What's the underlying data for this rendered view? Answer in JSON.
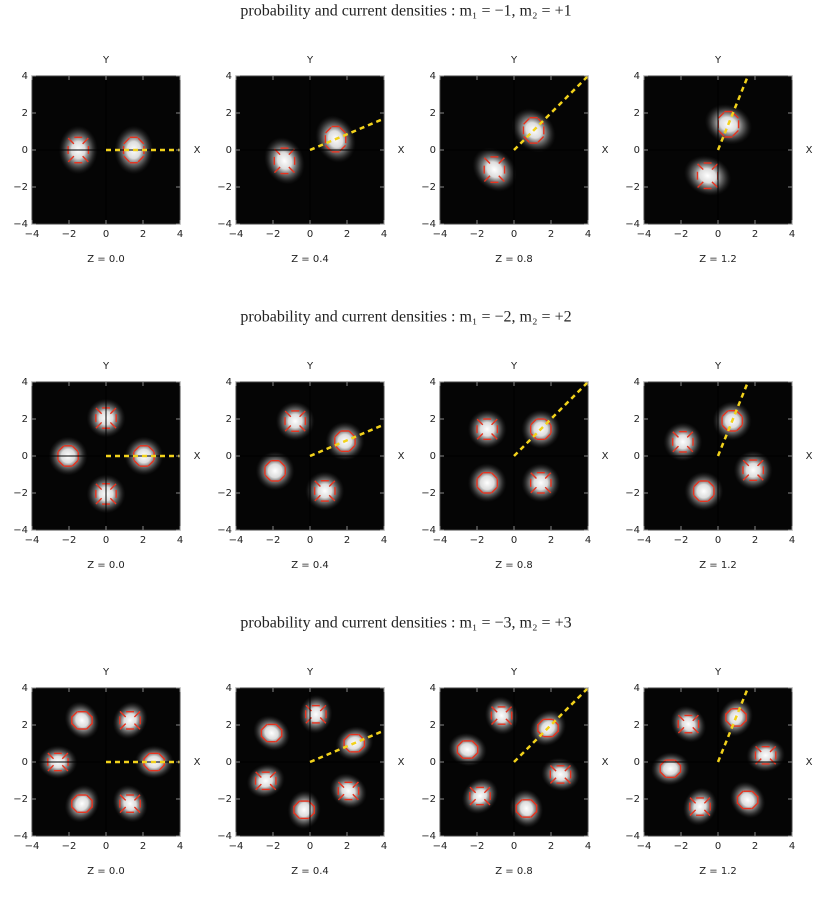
{
  "chart_data": [
    {
      "type": "density",
      "title": "probability and current densities : m₁ = −1, m₂ = +1",
      "lobes": 2,
      "xlabel": "X",
      "ylabel": "Y",
      "xlim": [
        -4,
        4
      ],
      "ylim": [
        -4,
        4
      ],
      "xticks": [
        {
          "value": -4,
          "label": "−4"
        },
        {
          "value": -2,
          "label": "−2"
        },
        0,
        2,
        4
      ],
      "yticks": [
        {
          "value": -4,
          "label": "−4"
        },
        {
          "value": -2,
          "label": "−2"
        },
        0,
        2,
        4
      ],
      "panels": [
        {
          "caption": "Z = 0.0",
          "phase_deg": 0
        },
        {
          "caption": "Z = 0.4",
          "phase_deg": 23
        },
        {
          "caption": "Z = 0.8",
          "phase_deg": 45
        },
        {
          "caption": "Z = 1.2",
          "phase_deg": 68
        }
      ]
    },
    {
      "type": "density",
      "title": "probability and current densities : m₁ = −2, m₂ = +2",
      "lobes": 4,
      "xlabel": "X",
      "ylabel": "Y",
      "xlim": [
        -4,
        4
      ],
      "ylim": [
        -4,
        4
      ],
      "xticks": [
        {
          "value": -4,
          "label": "−4"
        },
        {
          "value": -2,
          "label": "−2"
        },
        0,
        2,
        4
      ],
      "yticks": [
        {
          "value": -4,
          "label": "−4"
        },
        {
          "value": -2,
          "label": "−2"
        },
        0,
        2,
        4
      ],
      "panels": [
        {
          "caption": "Z = 0.0",
          "phase_deg": 0
        },
        {
          "caption": "Z = 0.4",
          "phase_deg": 23
        },
        {
          "caption": "Z = 0.8",
          "phase_deg": 45
        },
        {
          "caption": "Z = 1.2",
          "phase_deg": 68
        }
      ]
    },
    {
      "type": "density",
      "title": "probability and current densities : m₁ = −3, m₂ = +3",
      "lobes": 6,
      "xlabel": "X",
      "ylabel": "Y",
      "xlim": [
        -4,
        4
      ],
      "ylim": [
        -4,
        4
      ],
      "xticks": [
        {
          "value": -4,
          "label": "−4"
        },
        {
          "value": -2,
          "label": "−2"
        },
        0,
        2,
        4
      ],
      "yticks": [
        {
          "value": -4,
          "label": "−4"
        },
        {
          "value": -2,
          "label": "−2"
        },
        0,
        2,
        4
      ],
      "panels": [
        {
          "caption": "Z = 0.0",
          "phase_deg": 0
        },
        {
          "caption": "Z = 0.4",
          "phase_deg": 23
        },
        {
          "caption": "Z = 0.8",
          "phase_deg": 45
        },
        {
          "caption": "Z = 1.2",
          "phase_deg": 68
        }
      ]
    }
  ]
}
